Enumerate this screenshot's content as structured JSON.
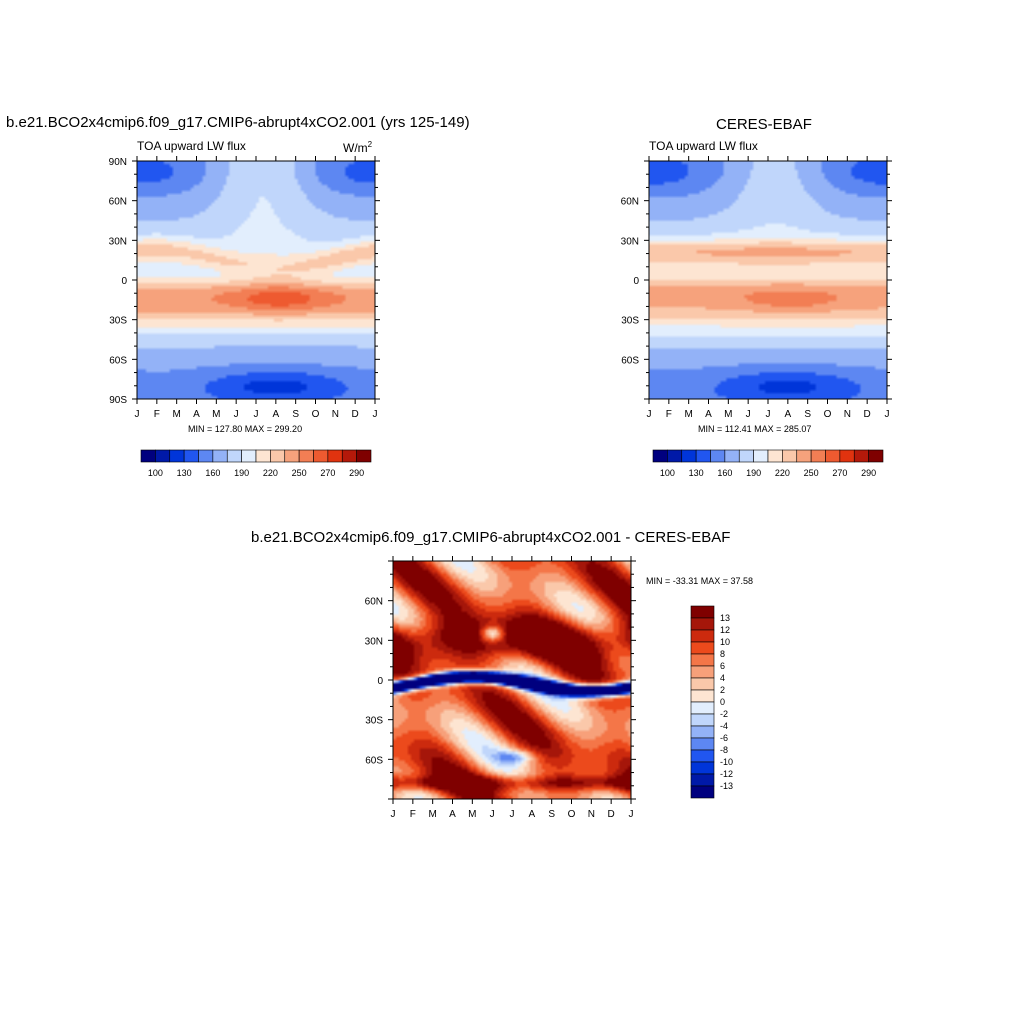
{
  "chart_data": [
    {
      "type": "heatmap",
      "title": "b.e21.BCO2x4cmip6.f09_g17.CMIP6-abrupt4xCO2.001 (yrs 125-149)",
      "subtitle_left": "TOA upward LW flux",
      "units": "W/m",
      "units_sup": "2",
      "x_tick_labels": [
        "J",
        "F",
        "M",
        "A",
        "M",
        "J",
        "J",
        "A",
        "S",
        "O",
        "N",
        "D",
        "J"
      ],
      "y_tick_labels": [
        "90N",
        "60N",
        "30N",
        "0",
        "30S",
        "60S",
        "90S"
      ],
      "ylim": [
        -90,
        90
      ],
      "stats": "MIN = 127.80 MAX = 299.20",
      "colorbar_labels": [
        "100",
        "130",
        "160",
        "190",
        "220",
        "250",
        "270",
        "290"
      ],
      "colorbar_levels": 16,
      "value_range": [
        127.8,
        299.2
      ]
    },
    {
      "type": "heatmap",
      "title": "CERES-EBAF",
      "subtitle_left": "TOA upward LW flux",
      "x_tick_labels": [
        "J",
        "F",
        "M",
        "A",
        "M",
        "J",
        "J",
        "A",
        "S",
        "O",
        "N",
        "D",
        "J"
      ],
      "y_tick_labels": [
        "60N",
        "30N",
        "0",
        "30S",
        "60S"
      ],
      "ylim": [
        -90,
        90
      ],
      "stats": "MIN = 112.41 MAX = 285.07",
      "colorbar_labels": [
        "100",
        "130",
        "160",
        "190",
        "220",
        "250",
        "270",
        "290"
      ],
      "colorbar_levels": 16,
      "value_range": [
        112.41,
        285.07
      ]
    },
    {
      "type": "heatmap",
      "title": "b.e21.BCO2x4cmip6.f09_g17.CMIP6-abrupt4xCO2.001 - CERES-EBAF",
      "x_tick_labels": [
        "J",
        "F",
        "M",
        "A",
        "M",
        "J",
        "J",
        "A",
        "S",
        "O",
        "N",
        "D",
        "J"
      ],
      "y_tick_labels": [
        "60N",
        "30N",
        "0",
        "30S",
        "60S"
      ],
      "ylim": [
        -90,
        90
      ],
      "stats": "MIN = -33.31 MAX =  37.58",
      "colorbar_labels": [
        "13",
        "12",
        "10",
        "8",
        "6",
        "4",
        "2",
        "0",
        "-2",
        "-4",
        "-6",
        "-8",
        "-10",
        "-12",
        "-13"
      ],
      "colorbar_orientation": "vertical",
      "value_range": [
        -33.31,
        37.58
      ]
    }
  ],
  "colors": {
    "seq": [
      "#00007f",
      "#0019a8",
      "#0035d9",
      "#2156f0",
      "#5d87f2",
      "#93b2f7",
      "#c0d6fb",
      "#e2eefd",
      "#fde5d2",
      "#fac8aa",
      "#f6a27c",
      "#f27e54",
      "#ee5a30",
      "#e0330f",
      "#b4190a",
      "#7f0000"
    ],
    "div": [
      "#7f0000",
      "#a5160a",
      "#cc2a0e",
      "#ec4a1c",
      "#f47648",
      "#f7a07a",
      "#fac8aa",
      "#fde5d2",
      "#e2eefd",
      "#c0d6fb",
      "#93b2f7",
      "#5d87f2",
      "#2156f0",
      "#0035d9",
      "#0019a8",
      "#00007f"
    ]
  }
}
